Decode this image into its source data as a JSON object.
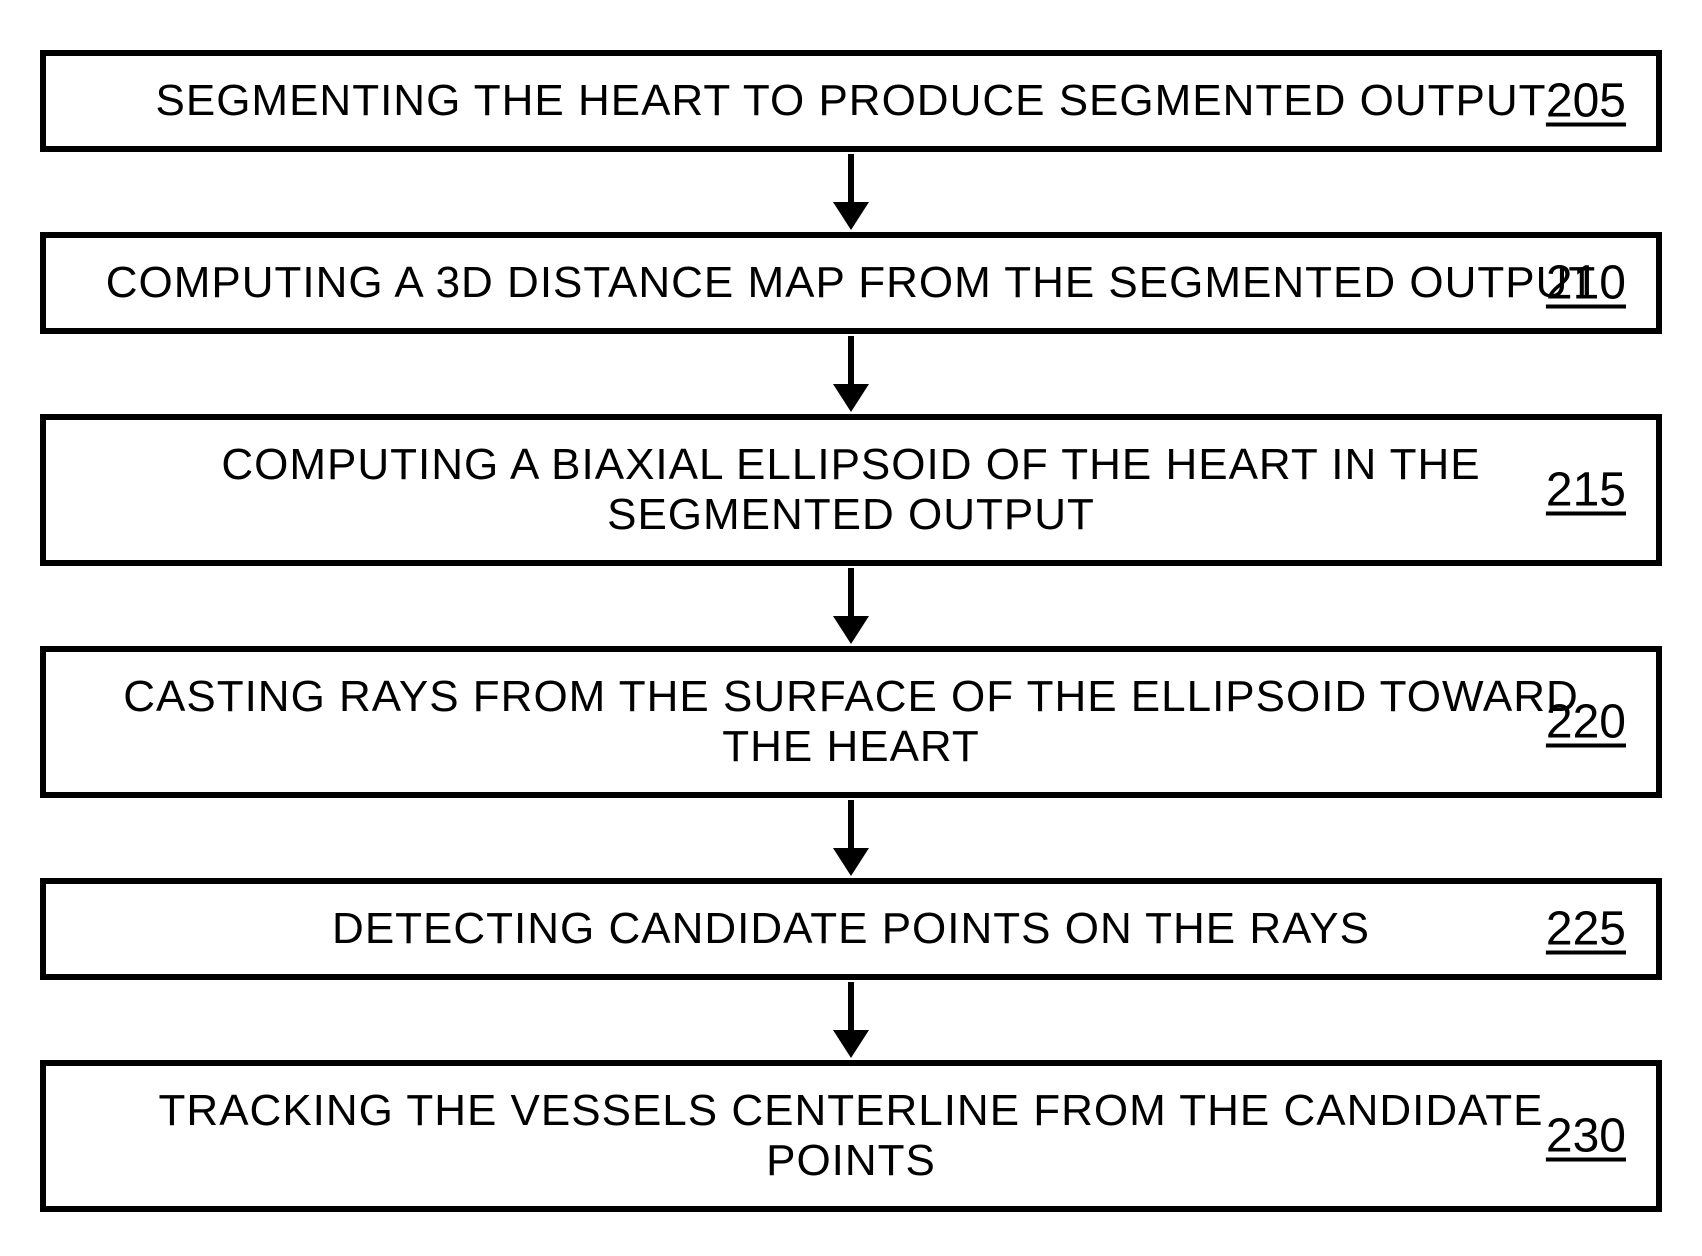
{
  "flowchart": {
    "type": "flowchart",
    "direction": "vertical",
    "box_border_width": 6,
    "box_border_color": "#000000",
    "box_background": "#ffffff",
    "text_color": "#000000",
    "text_fontsize": 44,
    "number_fontsize": 48,
    "arrow_color": "#000000",
    "arrow_line_width": 6,
    "arrow_line_height": 50,
    "arrow_head_width": 36,
    "arrow_head_height": 28,
    "steps": [
      {
        "text": "SEGMENTING THE HEART TO PRODUCE SEGMENTED OUTPUT",
        "number": "205"
      },
      {
        "text": "COMPUTING A 3D DISTANCE MAP FROM THE SEGMENTED OUTPUT",
        "number": "210"
      },
      {
        "text": "COMPUTING A BIAXIAL ELLIPSOID OF THE HEART IN THE SEGMENTED OUTPUT",
        "number": "215"
      },
      {
        "text": "CASTING RAYS FROM THE SURFACE OF THE ELLIPSOID TOWARD THE HEART",
        "number": "220"
      },
      {
        "text": "DETECTING CANDIDATE POINTS ON THE RAYS",
        "number": "225"
      },
      {
        "text": "TRACKING THE VESSELS CENTERLINE FROM THE CANDIDATE POINTS",
        "number": "230"
      }
    ]
  }
}
